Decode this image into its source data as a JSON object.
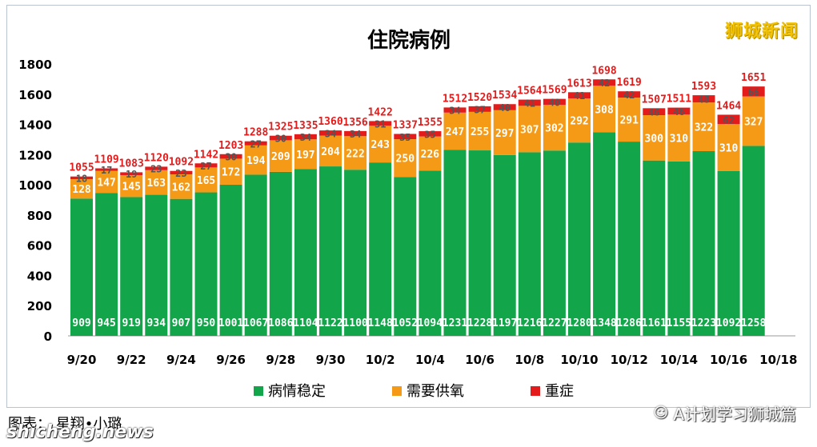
{
  "brand": "狮城新闻",
  "caption": "图表： 星翔•小璐",
  "watermark": "shicheng.news",
  "wechat": {
    "icon": "wechat-icon",
    "label": "A计划学习狮城篇"
  },
  "colors": {
    "stable": "#12a54a",
    "oxygen": "#f59a16",
    "severe": "#e31b1b",
    "total_label": "#e31b1b"
  },
  "chart_data": {
    "type": "bar",
    "stacked": true,
    "title": "住院病例",
    "xlabel": "",
    "ylabel": "",
    "ylim": [
      0,
      1800
    ],
    "yticks": [
      0,
      200,
      400,
      600,
      800,
      1000,
      1200,
      1400,
      1600,
      1800
    ],
    "xtick_labels": [
      "9/20",
      "9/22",
      "9/24",
      "9/26",
      "9/28",
      "9/30",
      "10/2",
      "10/4",
      "10/6",
      "10/8",
      "10/10",
      "10/12",
      "10/14",
      "10/16",
      "10/18"
    ],
    "categories": [
      "9/20",
      "9/21",
      "9/22",
      "9/23",
      "9/24",
      "9/25",
      "9/26",
      "9/27",
      "9/28",
      "9/29",
      "9/30",
      "10/1",
      "10/2",
      "10/3",
      "10/4",
      "10/5",
      "10/6",
      "10/7",
      "10/8",
      "10/9",
      "10/10",
      "10/11",
      "10/12",
      "10/13",
      "10/14",
      "10/15",
      "10/16",
      "10/17"
    ],
    "series": [
      {
        "name": "病情稳定",
        "values": [
          909,
          945,
          919,
          934,
          907,
          950,
          1001,
          1067,
          1086,
          1104,
          1122,
          1100,
          1148,
          1052,
          1094,
          1231,
          1228,
          1197,
          1216,
          1227,
          1280,
          1348,
          1286,
          1161,
          1155,
          1223,
          1092,
          1258
        ]
      },
      {
        "name": "需要供氧",
        "values": [
          128,
          147,
          145,
          163,
          162,
          165,
          172,
          194,
          209,
          197,
          204,
          222,
          243,
          250,
          226,
          247,
          255,
          297,
          307,
          302,
          292,
          308,
          291,
          300,
          310,
          322,
          310,
          327
        ]
      },
      {
        "name": "重症",
        "values": [
          18,
          17,
          19,
          23,
          23,
          27,
          30,
          27,
          30,
          34,
          34,
          34,
          31,
          35,
          35,
          34,
          37,
          40,
          41,
          40,
          41,
          42,
          42,
          46,
          46,
          48,
          62,
          66
        ]
      }
    ],
    "totals": [
      1055,
      1109,
      1083,
      1120,
      1092,
      1142,
      1203,
      1288,
      1325,
      1335,
      1360,
      1356,
      1422,
      1337,
      1355,
      1512,
      1520,
      1534,
      1564,
      1569,
      1613,
      1698,
      1619,
      1507,
      1511,
      1593,
      1464,
      1651
    ],
    "legend_position": "bottom",
    "grid": false
  }
}
